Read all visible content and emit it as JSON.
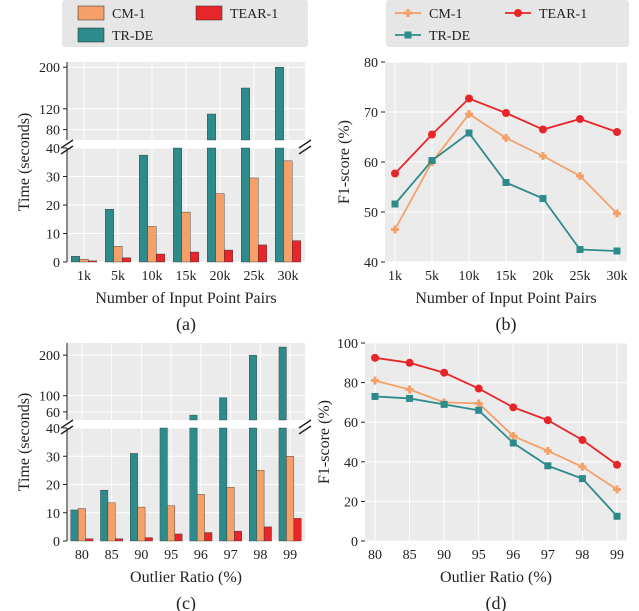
{
  "colors": {
    "CM-1": "#f4a068",
    "TEAR-1": "#e8262a",
    "TR-DE": "#2e8b8b",
    "plot_bg": "#ebebeb",
    "legend_bg": "#e6e6e6",
    "grid": "#ffffff"
  },
  "chart_data": [
    {
      "panel": "a",
      "type": "bar",
      "caption": "(a)",
      "xlabel": "Number of Input Point Pairs",
      "ylabel": "Time (seconds)",
      "categories": [
        "1k",
        "5k",
        "10k",
        "15k",
        "20k",
        "25k",
        "30k"
      ],
      "series": [
        {
          "name": "TR-DE",
          "values": [
            2,
            18.5,
            37.5,
            42,
            110,
            160,
            200
          ]
        },
        {
          "name": "CM-1",
          "values": [
            1,
            5.5,
            12.5,
            17.5,
            24,
            29.5,
            35.5
          ]
        },
        {
          "name": "TEAR-1",
          "values": [
            0.4,
            1.5,
            2.8,
            3.5,
            4.2,
            6,
            7.5
          ]
        }
      ],
      "broken_axis": {
        "lower_ylim": [
          0,
          40
        ],
        "lower_ticks": [
          0,
          10,
          20,
          30,
          40
        ],
        "upper_ylim": [
          60,
          210
        ],
        "upper_ticks": [
          80,
          120,
          200
        ]
      },
      "legend": "top-outside"
    },
    {
      "panel": "b",
      "type": "line",
      "caption": "(b)",
      "xlabel": "Number of Input Point Pairs",
      "ylabel": "F1-score (%)",
      "categories": [
        "1k",
        "5k",
        "10k",
        "15k",
        "20k",
        "25k",
        "30k"
      ],
      "ylim": [
        40,
        80
      ],
      "yticks": [
        40,
        50,
        60,
        70,
        80
      ],
      "series": [
        {
          "name": "CM-1",
          "marker": "plus",
          "values": [
            46.5,
            60,
            69.6,
            64.8,
            61.2,
            57.2,
            49.7
          ]
        },
        {
          "name": "TEAR-1",
          "marker": "circle",
          "values": [
            57.7,
            65.5,
            72.7,
            69.8,
            66.5,
            68.6,
            66
          ]
        },
        {
          "name": "TR-DE",
          "marker": "square",
          "values": [
            51.6,
            60.3,
            65.8,
            55.9,
            52.7,
            42.5,
            42.2
          ]
        }
      ],
      "legend": "top-outside"
    },
    {
      "panel": "c",
      "type": "bar",
      "caption": "(c)",
      "xlabel": "Outlier Ratio (%)",
      "ylabel": "Time (seconds)",
      "categories": [
        "80",
        "85",
        "90",
        "95",
        "96",
        "97",
        "98",
        "99"
      ],
      "series": [
        {
          "name": "TR-DE",
          "values": [
            11,
            18,
            31,
            40,
            52,
            95,
            200,
            220
          ]
        },
        {
          "name": "CM-1",
          "values": [
            11.5,
            13.5,
            12,
            12.5,
            16.5,
            19,
            25,
            30
          ]
        },
        {
          "name": "TEAR-1",
          "values": [
            0.8,
            0.8,
            1.2,
            2.5,
            3,
            3.5,
            5,
            8
          ]
        }
      ],
      "broken_axis": {
        "lower_ylim": [
          0,
          40
        ],
        "lower_ticks": [
          0,
          10,
          20,
          30,
          40
        ],
        "upper_ylim": [
          40,
          230
        ],
        "upper_ticks": [
          60,
          100,
          200
        ]
      }
    },
    {
      "panel": "d",
      "type": "line",
      "caption": "(d)",
      "xlabel": "Outlier Ratio (%)",
      "ylabel": "F1-score (%)",
      "categories": [
        "80",
        "85",
        "90",
        "95",
        "96",
        "97",
        "98",
        "99"
      ],
      "ylim": [
        0,
        100
      ],
      "yticks": [
        0,
        20,
        40,
        60,
        80,
        100
      ],
      "series": [
        {
          "name": "TEAR-1",
          "marker": "circle",
          "values": [
            92.5,
            90,
            85,
            77,
            67.5,
            61,
            51,
            38.5
          ]
        },
        {
          "name": "CM-1",
          "marker": "plus",
          "values": [
            81,
            76.5,
            70,
            69.5,
            53,
            45.5,
            37.5,
            26
          ]
        },
        {
          "name": "TR-DE",
          "marker": "square",
          "values": [
            73,
            72,
            69,
            66,
            49.5,
            38,
            31.5,
            12.5
          ]
        }
      ]
    }
  ]
}
